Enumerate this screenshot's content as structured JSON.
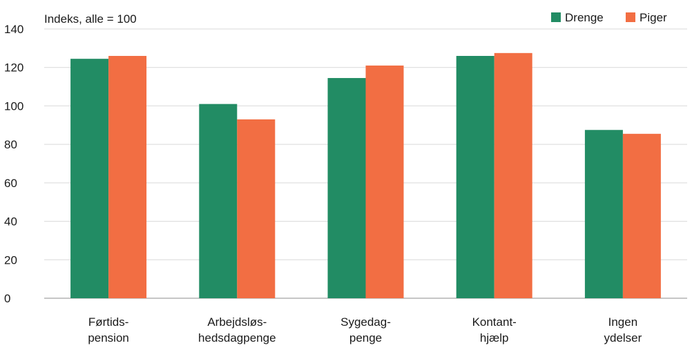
{
  "chart_data": {
    "type": "bar",
    "unit_label": "Indeks, alle = 100",
    "categories": [
      [
        "Førtids-",
        "pension"
      ],
      [
        "Arbejdsløs-",
        "hedsdagpenge"
      ],
      [
        "Sygedag-",
        "penge"
      ],
      [
        "Kontant-",
        "hjælp"
      ],
      [
        "Ingen",
        "ydelser"
      ]
    ],
    "series": [
      {
        "name": "Drenge",
        "color": "#228c64",
        "values": [
          124.5,
          101,
          114.5,
          126,
          87.5
        ]
      },
      {
        "name": "Piger",
        "color": "#f26e43",
        "values": [
          126,
          93,
          121,
          127.5,
          85.5
        ]
      }
    ],
    "ylim": [
      0,
      140
    ],
    "yticks": [
      "0",
      "20",
      "40",
      "60",
      "80",
      "100",
      "120",
      "140"
    ],
    "grid": true,
    "legend_position": "top-right"
  }
}
